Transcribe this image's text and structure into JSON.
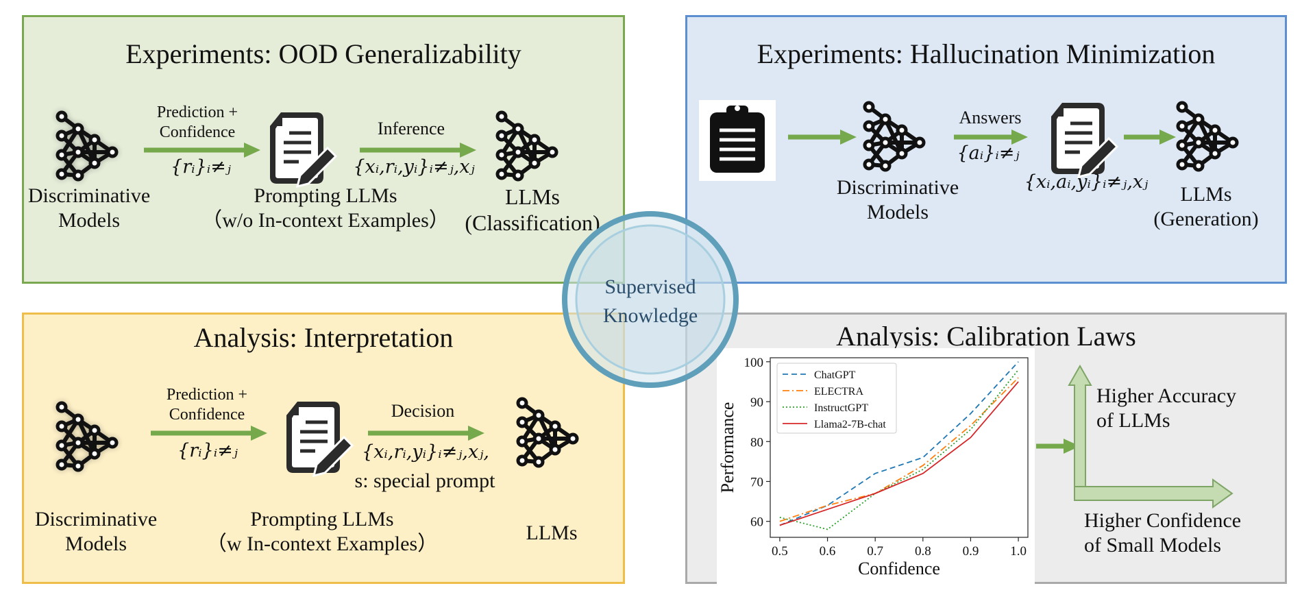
{
  "center": {
    "label_line1": "Supervised",
    "label_line2": "Knowledge"
  },
  "ood_panel": {
    "title": "Experiments: OOD Generalizability",
    "edge_1_label_line1": "Prediction +",
    "edge_1_label_line2": "Confidence",
    "edge_1_math": "{rᵢ}ᵢ≠ⱼ",
    "edge_2_label": "Inference",
    "edge_2_math": "{xᵢ,rᵢ,yᵢ}ᵢ≠ⱼ,xⱼ",
    "node_1_line1": "Discriminative",
    "node_1_line2": "Models",
    "node_2_line1": "Prompting  LLMs",
    "node_2_line2": "（w/o In-context  Examples）",
    "node_3_line1": "LLMs",
    "node_3_line2": "(Classification)"
  },
  "halluc_panel": {
    "title": "Experiments: Hallucination Minimization",
    "edge_label": "Answers",
    "edge_math": "{aᵢ}ᵢ≠ⱼ",
    "edge_math_2": "{xᵢ,aᵢ,yᵢ}ᵢ≠ⱼ,xⱼ",
    "node_1_line1": "Discriminative",
    "node_1_line2": "Models",
    "node_2_line1": "LLMs",
    "node_2_line2": "(Generation)"
  },
  "interp_panel": {
    "title": "Analysis: Interpretation",
    "edge_1_label_line1": "Prediction +",
    "edge_1_label_line2": "Confidence",
    "edge_1_math": "{rᵢ}ᵢ≠ⱼ",
    "edge_2_label": "Decision",
    "edge_2_math": "{xᵢ,rᵢ,yᵢ}ᵢ≠ⱼ,xⱼ,",
    "edge_2_extra": "s: special prompt",
    "node_1_line1": "Discriminative",
    "node_1_line2": "Models",
    "node_2_line1": "Prompting  LLMs",
    "node_2_line2": "（w In-context  Examples）",
    "node_3_line1": "LLMs"
  },
  "calib_panel": {
    "title": "Analysis: Calibration Laws",
    "vertical_label_line1": "Higher Accuracy",
    "vertical_label_line2": "of LLMs",
    "horizontal_label_line1": "Higher Confidence",
    "horizontal_label_line2": "of Small Models"
  },
  "colors": {
    "arrow": "#76a84c",
    "chatgpt": "#1f77b4",
    "electra": "#ff7f0e",
    "instructgpt": "#2ca02c",
    "llama": "#d62728"
  },
  "chart_data": {
    "type": "line",
    "xlabel": "Confidence",
    "ylabel": "Performance",
    "x": [
      0.5,
      0.6,
      0.7,
      0.8,
      0.9,
      1.0
    ],
    "x_tick_labels": [
      "0.5",
      "0.6",
      "0.7",
      "0.8",
      "0.9",
      "1.0"
    ],
    "y_ticks": [
      60,
      70,
      80,
      90,
      100
    ],
    "xlim": [
      0.48,
      1.02
    ],
    "ylim": [
      56,
      101
    ],
    "legend_position": "top-left",
    "series": [
      {
        "name": "ChatGPT",
        "values": [
          59,
          64,
          72,
          76,
          87,
          100
        ],
        "color": "#1f77b4",
        "dash": "8,5"
      },
      {
        "name": "ELECTRA",
        "values": [
          60,
          64,
          67,
          74,
          84,
          96
        ],
        "color": "#ff7f0e",
        "dash": "10,4,2,4"
      },
      {
        "name": "InstructGPT",
        "values": [
          61,
          58,
          67,
          73,
          83,
          98
        ],
        "color": "#2ca02c",
        "dash": "2,3"
      },
      {
        "name": "Llama2-7B-chat",
        "values": [
          59,
          63,
          67,
          72,
          81,
          95
        ],
        "color": "#d62728",
        "dash": ""
      }
    ]
  }
}
